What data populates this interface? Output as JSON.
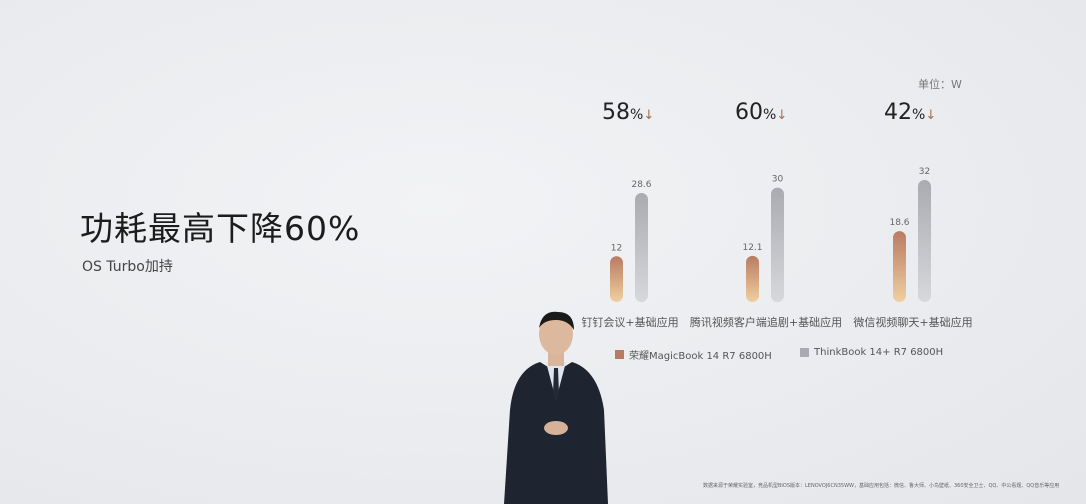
{
  "slide": {
    "title": "功耗最高下降60%",
    "subtitle": "OS Turbo加持",
    "footnote": "数据来源于荣耀实验室，竞品机型BIOS版本：LENOVOJ6CN35WW，基础应用包括：微信、鲁大师、小鸟壁纸、360安全卫士、QQ、中公看题、QQ音乐等应用"
  },
  "chart_data": {
    "type": "bar",
    "unit_label": "单位：W",
    "categories": [
      "钉钉会议+基础应用",
      "腾讯视频客户端追剧+基础应用",
      "微信视频聊天+基础应用"
    ],
    "reductions": [
      {
        "value": "58",
        "unit": "%",
        "arrow": "↓"
      },
      {
        "value": "60",
        "unit": "%",
        "arrow": "↓"
      },
      {
        "value": "42",
        "unit": "%",
        "arrow": "↓"
      }
    ],
    "series": [
      {
        "name": "荣耀MagicBook 14 R7 6800H",
        "values": [
          12,
          12.1,
          18.6
        ],
        "color": "#b87c62"
      },
      {
        "name": "ThinkBook 14+ R7 6800H",
        "values": [
          28.6,
          30,
          32
        ],
        "color": "#a9abb0"
      }
    ],
    "ylim": [
      0,
      32
    ],
    "grid": false,
    "legend": "bottom"
  }
}
